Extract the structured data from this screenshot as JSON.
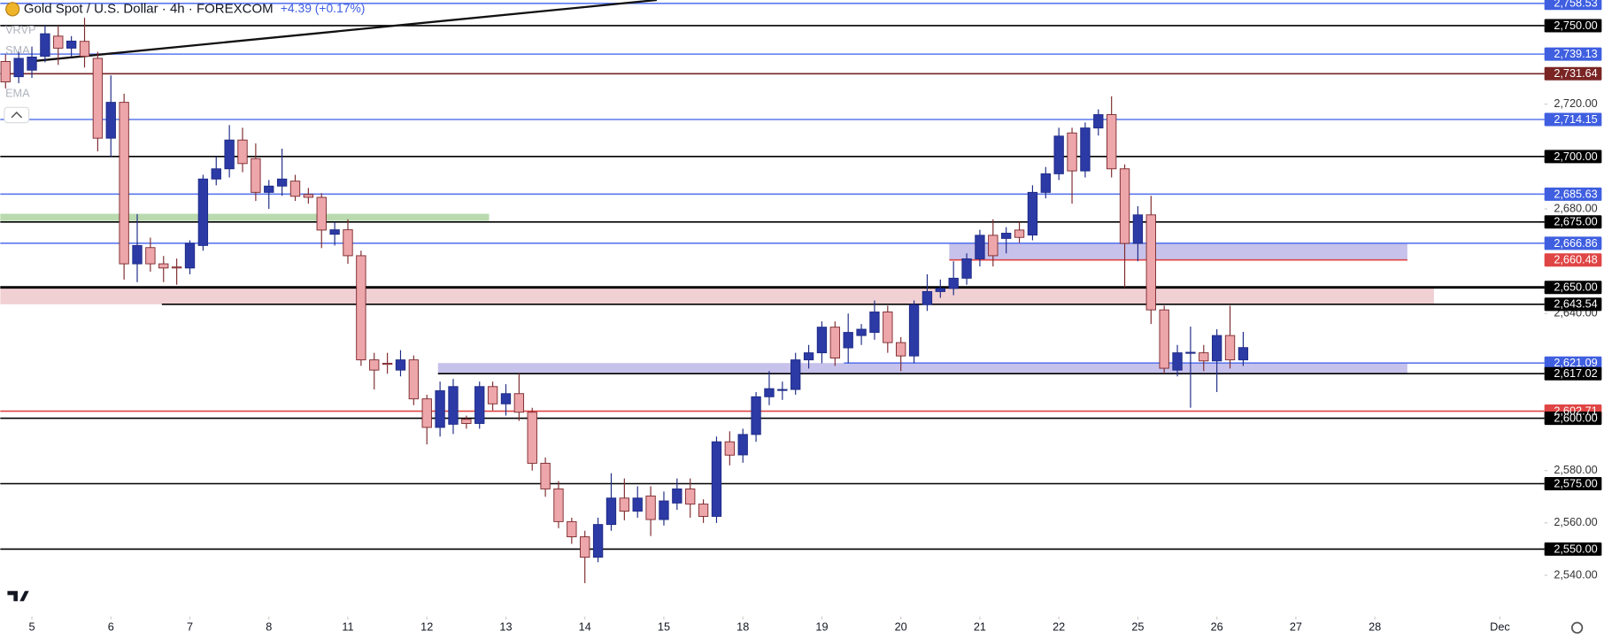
{
  "chart_data": {
    "type": "candlestick",
    "title": "Gold Spot / U.S. Dollar · 4h · FOREXCOM",
    "change": "+4.39 (+0.17%)",
    "indicators": [
      "VRVP",
      "SMA",
      "EMA"
    ],
    "up_color": "#2c3aa6",
    "down_color": "#eda6aa",
    "x": [
      -2,
      -1,
      0,
      1,
      2,
      3,
      4,
      5,
      6,
      7,
      8,
      9,
      10,
      11,
      12,
      13,
      14,
      15,
      16,
      17,
      18,
      19,
      20,
      21,
      22,
      23,
      24,
      25,
      26,
      27,
      28,
      29,
      30,
      31,
      32,
      33,
      34,
      35,
      36,
      37,
      38,
      39,
      40,
      41,
      42,
      43,
      44,
      45,
      46,
      47,
      48,
      49,
      50,
      51,
      52,
      53,
      54,
      55,
      56,
      57,
      58,
      59,
      60,
      61,
      62,
      63,
      64,
      65,
      66,
      67,
      68,
      69,
      70,
      71,
      72,
      73,
      74,
      75,
      76,
      77,
      78,
      79,
      80,
      81,
      82,
      83,
      84,
      85,
      86,
      87,
      88,
      89,
      90,
      91,
      92
    ],
    "open": [
      2736.3,
      2730.5,
      2733,
      2738.3,
      2746,
      2741.4,
      2744,
      2737.5,
      2707,
      2720.7,
      2659,
      2665.2,
      2659,
      2657.8,
      2657.4,
      2666,
      2691.4,
      2695.3,
      2706.3,
      2699.2,
      2686.3,
      2688.7,
      2690.6,
      2685.5,
      2684.4,
      2670.3,
      2672,
      2662.1,
      2622.3,
      2621,
      2618.4,
      2622.3,
      2607.4,
      2596.5,
      2597.7,
      2599.6,
      2598,
      2612.1,
      2605.5,
      2609.4,
      2602.3,
      2582.8,
      2573,
      2560.5,
      2554.7,
      2546.9,
      2559.4,
      2569.5,
      2564.5,
      2570.3,
      2561.3,
      2567.6,
      2573,
      2567.2,
      2562.5,
      2591,
      2586,
      2593.8,
      2608.2,
      2610.9,
      2611,
      2622.3,
      2625,
      2634.8,
      2626.9,
      2631.6,
      2632.8,
      2640.6,
      2628.9,
      2623.8,
      2643.4,
      2648.4,
      2649.6,
      2653.5,
      2660.9,
      2669.9,
      2668.7,
      2671.9,
      2670,
      2686.3,
      2693.4,
      2709,
      2694.5,
      2710.9,
      2716,
      2695.3,
      2666.8,
      2677.7,
      2641.4,
      2618.4,
      2625,
      2625,
      2621.9,
      2631.6,
      2622.3
    ],
    "high": [
      2739,
      2740,
      2742,
      2750,
      2750,
      2746,
      2753,
      2740,
      2731,
      2724,
      2678,
      2669,
      2662,
      2661,
      2668,
      2693,
      2700,
      2712,
      2711,
      2705,
      2691,
      2703,
      2693,
      2688,
      2686,
      2675,
      2676,
      2664,
      2625,
      2625,
      2626,
      2624,
      2609,
      2614,
      2615,
      2601,
      2614,
      2614,
      2613,
      2617,
      2604,
      2585,
      2576,
      2562,
      2557,
      2562,
      2579,
      2577,
      2574,
      2574,
      2572,
      2577,
      2577,
      2569,
      2593,
      2595,
      2596,
      2610,
      2618,
      2614,
      2625,
      2628,
      2637,
      2637,
      2640,
      2636,
      2645,
      2643,
      2631,
      2645,
      2655,
      2653,
      2660,
      2663,
      2672,
      2676,
      2673,
      2675,
      2689,
      2696,
      2711,
      2711,
      2713,
      2718,
      2723,
      2697,
      2681,
      2685,
      2643,
      2628,
      2635,
      2628,
      2634,
      2643,
      2633
    ],
    "low": [
      2726,
      2728,
      2730,
      2736,
      2735,
      2738,
      2734,
      2702,
      2700,
      2653,
      2652,
      2656,
      2652,
      2651,
      2655,
      2664,
      2689,
      2692,
      2694,
      2683,
      2680,
      2685,
      2683,
      2682,
      2665,
      2666,
      2659,
      2620,
      2611,
      2617,
      2616,
      2605,
      2590,
      2593,
      2594,
      2596,
      2596,
      2603,
      2601,
      2599,
      2580,
      2570,
      2558,
      2552,
      2537,
      2545,
      2557,
      2561,
      2562,
      2555,
      2559,
      2565,
      2562,
      2560,
      2560,
      2582,
      2583,
      2591,
      2605,
      2607,
      2609,
      2619,
      2621,
      2620,
      2621,
      2628,
      2630,
      2625,
      2618,
      2621,
      2641,
      2646,
      2647,
      2651,
      2658,
      2658,
      2663,
      2667,
      2668,
      2684,
      2691,
      2682,
      2692,
      2708,
      2692,
      2650,
      2660,
      2636,
      2617,
      2616,
      2604,
      2618,
      2610,
      2619,
      2620
    ],
    "close": [
      2728.5,
      2737.5,
      2738,
      2746.9,
      2741.4,
      2744.1,
      2738.3,
      2707,
      2720.7,
      2659,
      2666,
      2659,
      2657.4,
      2657.4,
      2666.8,
      2691.4,
      2695.3,
      2706.3,
      2697.3,
      2686.3,
      2688.7,
      2691.4,
      2684.8,
      2684.4,
      2671.9,
      2672,
      2662.1,
      2622.3,
      2618.4,
      2620.6,
      2622.3,
      2607.4,
      2596.5,
      2610.5,
      2612.1,
      2598,
      2612.1,
      2605.5,
      2609.4,
      2602.3,
      2582.8,
      2573,
      2560.5,
      2554.7,
      2546.9,
      2559.4,
      2569.5,
      2564.5,
      2569.5,
      2561.3,
      2568.4,
      2573,
      2567.2,
      2562.5,
      2591,
      2585.9,
      2593.8,
      2608.2,
      2611.3,
      2611,
      2622.3,
      2625,
      2634.8,
      2623,
      2632.8,
      2634,
      2640.6,
      2628.9,
      2623.8,
      2643.4,
      2648.4,
      2649.6,
      2653.5,
      2660.9,
      2669.9,
      2662.1,
      2670.7,
      2669.1,
      2686.3,
      2693.4,
      2707.8,
      2694.5,
      2710.9,
      2716,
      2695.3,
      2666.8,
      2677.7,
      2641.4,
      2619.1,
      2625,
      2625.2,
      2621.9,
      2631.6,
      2622.3,
      2627
    ],
    "xlim": [
      -2.4,
      114.1
    ],
    "xticks": [
      {
        "value": 0,
        "label": "5"
      },
      {
        "value": 6,
        "label": "6"
      },
      {
        "value": 12,
        "label": "7"
      },
      {
        "value": 18,
        "label": "8"
      },
      {
        "value": 24,
        "label": "11"
      },
      {
        "value": 30,
        "label": "12"
      },
      {
        "value": 36,
        "label": "13"
      },
      {
        "value": 42,
        "label": "14"
      },
      {
        "value": 48,
        "label": "15"
      },
      {
        "value": 54,
        "label": "18"
      },
      {
        "value": 60,
        "label": "19"
      },
      {
        "value": 66,
        "label": "20"
      },
      {
        "value": 72,
        "label": "21"
      },
      {
        "value": 78,
        "label": "22"
      },
      {
        "value": 84,
        "label": "25"
      },
      {
        "value": 90,
        "label": "26"
      },
      {
        "value": 96,
        "label": "27"
      },
      {
        "value": 102,
        "label": "28"
      },
      {
        "value": 111.5,
        "label": "Dec"
      }
    ],
    "ylim": [
      2526.2,
      2759.8
    ],
    "yticks": [
      {
        "value": 2720,
        "label": "2,720.00"
      },
      {
        "value": 2680,
        "label": "2,680.00"
      },
      {
        "value": 2640,
        "label": "2,640.00"
      },
      {
        "value": 2580,
        "label": "2,580.00"
      },
      {
        "value": 2560,
        "label": "2,560.00"
      },
      {
        "value": 2540,
        "label": "2,540.00"
      }
    ],
    "levels": [
      {
        "value": 2758.53,
        "label": "2,758.53",
        "color": "#3f5fe0"
      },
      {
        "value": 2750,
        "label": "2,750.00",
        "color": "#000000"
      },
      {
        "value": 2739.13,
        "label": "2,739.13",
        "color": "#3f5fe0"
      },
      {
        "value": 2731.64,
        "label": "2,731.64",
        "color": "#7a2424"
      },
      {
        "value": 2714.15,
        "label": "2,714.15",
        "color": "#3f5fe0"
      },
      {
        "value": 2700,
        "label": "2,700.00",
        "color": "#000000"
      },
      {
        "value": 2685.63,
        "label": "2,685.63",
        "color": "#3f5fe0"
      },
      {
        "value": 2675,
        "label": "2,675.00",
        "color": "#000000"
      },
      {
        "value": 2666.86,
        "label": "2,666.86",
        "color": "#3f5fe0"
      },
      {
        "value": 2660.48,
        "label": "2,660.48",
        "color": "#e04545"
      },
      {
        "value": 2650,
        "label": "2,650.00",
        "color": "#000000"
      },
      {
        "value": 2643.54,
        "label": "2,643.54",
        "color": "#000000"
      },
      {
        "value": 2621.09,
        "label": "2,621.09",
        "color": "#3f5fe0"
      },
      {
        "value": 2617.02,
        "label": "2,617.02",
        "color": "#000000"
      },
      {
        "value": 2602.71,
        "label": "2,602.71",
        "color": "#e04545"
      },
      {
        "value": 2600,
        "label": "2,600.00",
        "color": "#000000"
      },
      {
        "value": 2575,
        "label": "2,575.00",
        "color": "#000000"
      },
      {
        "value": 2550,
        "label": "2,550.00",
        "color": "#000000"
      }
    ]
  }
}
